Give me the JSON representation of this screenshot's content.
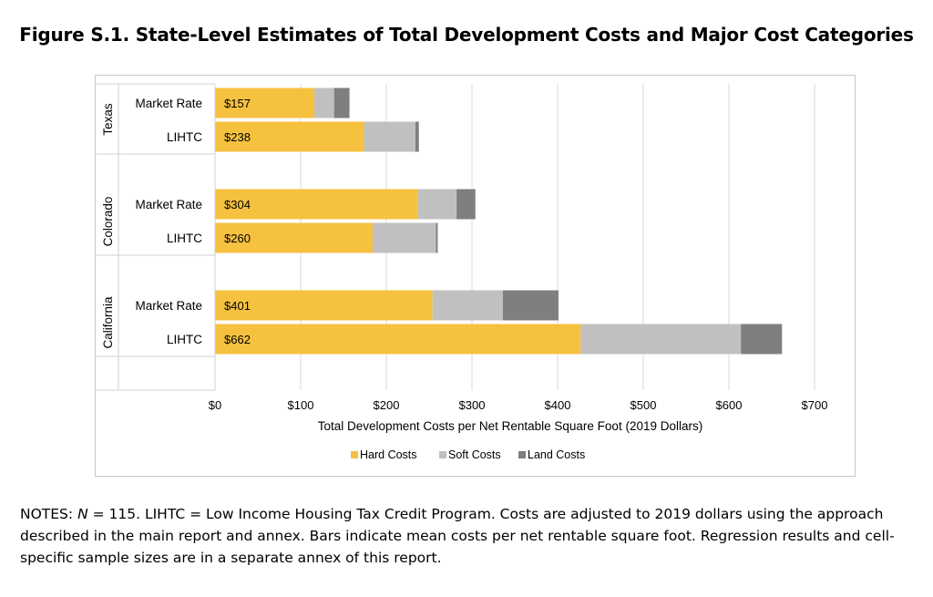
{
  "figure_title": "Figure S.1. State-Level Estimates of Total Development Costs and Major Cost Categories",
  "notes": {
    "label": "NOTES:",
    "n_symbol": "N",
    "text": " = 115. LIHTC = Low Income Housing Tax Credit Program. Costs are adjusted to 2019 dollars using the approach described in the main report and annex. Bars indicate mean costs per net rentable square foot. Regression results and cell-specific sample sizes are in a separate annex of this report."
  },
  "colors": {
    "hard": "#F5C13F",
    "soft": "#C0C0C0",
    "land": "#7F7F7F",
    "grid": "#D9D9D9"
  },
  "chart_data": {
    "type": "bar",
    "orientation": "horizontal",
    "stacked": true,
    "title": "",
    "xlabel": "Total Development Costs per Net Rentable Square Foot (2019 Dollars)",
    "ylabel": "",
    "xlim": [
      0,
      700
    ],
    "xticks": [
      0,
      100,
      200,
      300,
      400,
      500,
      600,
      700
    ],
    "xtick_labels": [
      "$0",
      "$100",
      "$200",
      "$300",
      "$400",
      "$500",
      "$600",
      "$700"
    ],
    "grid": true,
    "legend_position": "bottom",
    "groups": [
      "Texas",
      "Colorado",
      "California"
    ],
    "categories": [
      {
        "group": "Texas",
        "label": "Market Rate"
      },
      {
        "group": "Texas",
        "label": "LIHTC"
      },
      {
        "group": "Colorado",
        "label": "Market Rate"
      },
      {
        "group": "Colorado",
        "label": "LIHTC"
      },
      {
        "group": "California",
        "label": "Market Rate"
      },
      {
        "group": "California",
        "label": "LIHTC"
      }
    ],
    "series": [
      {
        "name": "Hard Costs",
        "values": [
          116,
          174,
          237,
          184,
          254,
          427
        ]
      },
      {
        "name": "Soft Costs",
        "values": [
          23,
          60,
          45,
          74,
          82,
          187
        ]
      },
      {
        "name": "Land Costs",
        "values": [
          18,
          4,
          22,
          2,
          65,
          48
        ]
      }
    ],
    "totals": [
      157,
      238,
      304,
      260,
      401,
      662
    ],
    "total_labels": [
      "$157",
      "$238",
      "$304",
      "$260",
      "$401",
      "$662"
    ]
  }
}
